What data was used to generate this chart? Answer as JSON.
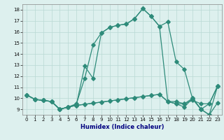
{
  "x": [
    0,
    1,
    2,
    3,
    4,
    5,
    6,
    7,
    8,
    9,
    10,
    11,
    12,
    13,
    14,
    15,
    16,
    17,
    18,
    19,
    20,
    21,
    22,
    23
  ],
  "line1_y": [
    10.3,
    9.9,
    9.8,
    9.7,
    9.0,
    9.2,
    9.4,
    12.9,
    11.8,
    15.9,
    16.4,
    16.6,
    16.7,
    17.2,
    18.1,
    17.4,
    16.5,
    16.9,
    13.3,
    12.6,
    9.9,
    9.0,
    9.5,
    11.1
  ],
  "line2_y": [
    10.3,
    9.9,
    9.8,
    9.7,
    9.0,
    9.2,
    9.5,
    11.8,
    14.8,
    15.9,
    16.4,
    16.6,
    16.7,
    17.2,
    18.1,
    17.4,
    16.5,
    9.7,
    9.7,
    9.5,
    10.0,
    9.0,
    8.5,
    9.6
  ],
  "line3_y": [
    10.3,
    9.9,
    9.8,
    9.7,
    9.0,
    9.2,
    9.35,
    9.45,
    9.55,
    9.65,
    9.75,
    9.85,
    9.95,
    10.05,
    10.15,
    10.25,
    10.35,
    9.7,
    9.5,
    9.5,
    9.8,
    9.5,
    9.5,
    11.1
  ],
  "line4_y": [
    10.3,
    9.9,
    9.8,
    9.7,
    9.0,
    9.2,
    9.35,
    9.45,
    9.55,
    9.65,
    9.75,
    9.85,
    9.95,
    10.05,
    10.15,
    10.25,
    10.35,
    9.7,
    9.5,
    9.2,
    10.0,
    9.0,
    8.5,
    11.1
  ],
  "line_color": "#2e8b7a",
  "bg_color": "#ddf0ee",
  "grid_color": "#b8d8d4",
  "xlabel": "Humidex (Indice chaleur)",
  "xlim": [
    -0.5,
    23.5
  ],
  "ylim": [
    8.5,
    18.5
  ],
  "yticks": [
    9,
    10,
    11,
    12,
    13,
    14,
    15,
    16,
    17,
    18
  ]
}
